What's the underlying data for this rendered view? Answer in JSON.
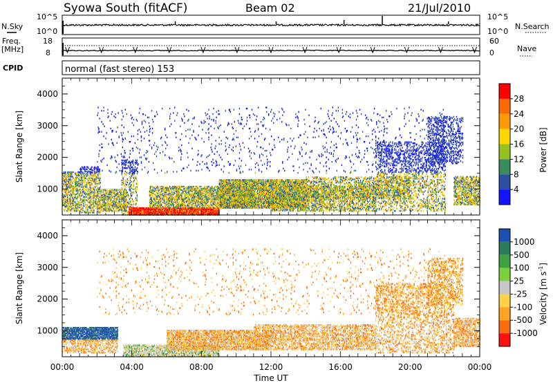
{
  "header": {
    "title": "Syowa South (fitACF)",
    "beam": "Beam 02",
    "date": "21/Jul/2010"
  },
  "top_panels": {
    "nsky_label": "N.Sky",
    "nsky_ticks": [
      "10^5",
      "10^0"
    ],
    "nsearch_label": "N.Search",
    "nsearch_ticks": [
      "10^5",
      "10^0"
    ],
    "freq_label_line1": "Freq.",
    "freq_label_line2": "[MHz]",
    "freq_ticks": [
      "18",
      "8"
    ],
    "nave_label": "Nave",
    "nave_ticks": [
      "60",
      "0"
    ],
    "cpid_label": "CPID",
    "cpid_text": "normal (fast stereo) 153"
  },
  "chart_data": [
    {
      "type": "heatmap",
      "name": "power",
      "ylabel": "Slant Range [km]",
      "ylim": [
        180,
        4500
      ],
      "y_ticks": [
        "4000",
        "3000",
        "2000",
        "1000"
      ],
      "y_tick_values": [
        4000,
        3000,
        2000,
        1000
      ],
      "xlim_hours": [
        0,
        24
      ],
      "colorbar": {
        "label": "Power [dB]",
        "ticks": [
          "28",
          "24",
          "20",
          "16",
          "12",
          "8",
          "4"
        ],
        "colors_top_to_bottom": [
          "#ff0000",
          "#ff6a00",
          "#ff9b00",
          "#ffd700",
          "#95c21f",
          "#3a8c5c",
          "#2c4fa3",
          "#1414ff"
        ]
      },
      "regions": [
        {
          "t": [
            0,
            1
          ],
          "r": [
            300,
            1550
          ],
          "density": 0.45
        },
        {
          "t": [
            1,
            2.2
          ],
          "r": [
            250,
            1700
          ],
          "density": 0.4
        },
        {
          "t": [
            2.2,
            3.7
          ],
          "r": [
            300,
            1000
          ],
          "density": 0.55
        },
        {
          "t": [
            3.4,
            4.3
          ],
          "r": [
            180,
            1900
          ],
          "density": 0.25
        },
        {
          "t": [
            3.8,
            9
          ],
          "r": [
            180,
            400
          ],
          "density": 0.9
        },
        {
          "t": [
            5,
            11
          ],
          "r": [
            400,
            1100
          ],
          "density": 0.55
        },
        {
          "t": [
            9,
            14
          ],
          "r": [
            400,
            1300
          ],
          "density": 0.75
        },
        {
          "t": [
            12,
            18
          ],
          "r": [
            300,
            1100
          ],
          "density": 0.45
        },
        {
          "t": [
            14,
            20
          ],
          "r": [
            700,
            1400
          ],
          "density": 0.3
        },
        {
          "t": [
            18,
            22
          ],
          "r": [
            300,
            2500
          ],
          "density": 0.25
        },
        {
          "t": [
            21,
            23
          ],
          "r": [
            1800,
            3300
          ],
          "density": 0.25
        },
        {
          "t": [
            22.5,
            24
          ],
          "r": [
            500,
            1400
          ],
          "density": 0.5
        },
        {
          "t": [
            2,
            22
          ],
          "r": [
            1500,
            3600
          ],
          "density": 0.03
        }
      ]
    },
    {
      "type": "heatmap",
      "name": "velocity",
      "ylabel": "Slant Range [km]",
      "ylim": [
        180,
        4500
      ],
      "y_ticks": [
        "4000",
        "3000",
        "2000",
        "1000"
      ],
      "y_tick_values": [
        4000,
        3000,
        2000,
        1000
      ],
      "xlim_hours": [
        0,
        24
      ],
      "x_ticks": [
        "00:00",
        "04:00",
        "08:00",
        "12:00",
        "16:00",
        "20:00",
        "00:00"
      ],
      "xlabel": "Time UT",
      "colorbar": {
        "label_main": "Velocity",
        "label_unit": "[m s",
        "label_sup": "-1",
        "label_close": "]",
        "ticks": [
          "1000",
          "500",
          "100",
          "25",
          "-25",
          "-100",
          "-500",
          "-1000"
        ],
        "colors_top_to_bottom": [
          "#1e50b4",
          "#2c7c5a",
          "#3fa03f",
          "#7cd23c",
          "#c8c8c8",
          "#ffd04a",
          "#ffa41f",
          "#ff6a10",
          "#ff1010"
        ]
      },
      "regions": [
        {
          "t": [
            0,
            3.2
          ],
          "r": [
            700,
            1100
          ],
          "density": 0.7
        },
        {
          "t": [
            0,
            3.2
          ],
          "r": [
            300,
            700
          ],
          "density": 0.35
        },
        {
          "t": [
            3.5,
            9
          ],
          "r": [
            180,
            550
          ],
          "density": 0.6
        },
        {
          "t": [
            6,
            12
          ],
          "r": [
            400,
            1000
          ],
          "density": 0.65
        },
        {
          "t": [
            11,
            18
          ],
          "r": [
            400,
            1200
          ],
          "density": 0.45
        },
        {
          "t": [
            18,
            22.5
          ],
          "r": [
            300,
            2500
          ],
          "density": 0.25
        },
        {
          "t": [
            21,
            23
          ],
          "r": [
            1800,
            3300
          ],
          "density": 0.25
        },
        {
          "t": [
            22.5,
            24
          ],
          "r": [
            500,
            1400
          ],
          "density": 0.5
        },
        {
          "t": [
            2,
            22
          ],
          "r": [
            1500,
            3600
          ],
          "density": 0.03
        }
      ]
    }
  ]
}
